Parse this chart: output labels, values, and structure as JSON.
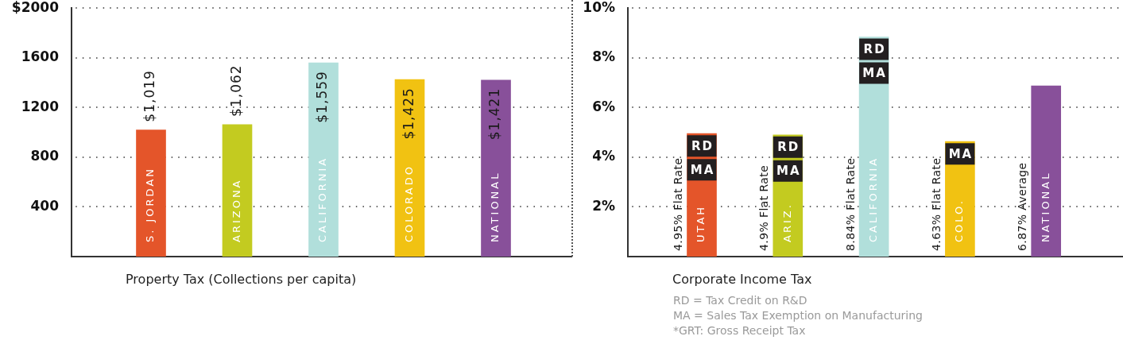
{
  "chart_data": [
    {
      "type": "bar",
      "xlabel": "Property Tax (Collections per capita)",
      "categories": [
        "S. JORDAN",
        "ARIZONA",
        "CALIFORNIA",
        "COLORADO",
        "NATIONAL"
      ],
      "values": [
        1019,
        1062,
        1559,
        1425,
        1421
      ],
      "colors": [
        "#e4552a",
        "#c3cb20",
        "#b1dfdb",
        "#f1c212",
        "#88509a"
      ],
      "value_labels": [
        "$1,019",
        "$1,062",
        "$1,559",
        "$1,425",
        "$1,421"
      ],
      "ylim": [
        0,
        2000
      ],
      "yticks": [
        400,
        800,
        1200,
        1600,
        {
          "value": 2000,
          "label": "$2000"
        }
      ],
      "grid": "y"
    },
    {
      "type": "bar",
      "xlabel": "Corporate Income Tax",
      "categories": [
        "UTAH",
        "ARIZ.",
        "CALIFORNIA",
        "COLO.",
        "NATIONAL"
      ],
      "values": [
        4.95,
        4.9,
        8.84,
        4.63,
        6.87
      ],
      "colors": [
        "#e4552a",
        "#c3cb20",
        "#b1dfdb",
        "#f1c212",
        "#88509a"
      ],
      "value_labels": [
        "4.95% Flat Rate",
        "4.9% Flat Rate",
        "8.84% Flat Rate",
        "4.63% Flat Rate",
        "6.87% Average"
      ],
      "ylim": [
        0,
        10
      ],
      "yticks": [
        {
          "value": 2,
          "label": "2%"
        },
        {
          "value": 4,
          "label": "4%"
        },
        {
          "value": 6,
          "label": "6%"
        },
        {
          "value": 8,
          "label": "8%"
        },
        {
          "value": 10,
          "label": "10%"
        }
      ],
      "grid": "y",
      "annotations": [
        {
          "text": "RD",
          "x": "UTAH",
          "y": 4.95
        },
        {
          "text": "MA",
          "x": "UTAH",
          "y": 4.95
        },
        {
          "text": "RD",
          "x": "ARIZ.",
          "y": 4.9
        },
        {
          "text": "MA",
          "x": "ARIZ.",
          "y": 4.9
        },
        {
          "text": "RD",
          "x": "CALIFORNIA",
          "y": 8.84
        },
        {
          "text": "MA",
          "x": "CALIFORNIA",
          "y": 8.84
        },
        {
          "text": "MA",
          "x": "COLO.",
          "y": 4.63
        },
        "RD = Tax Credit on R&D",
        "MA = Sales Tax Exemption on Manufacturing",
        "*GRT: Gross Receipt Tax"
      ]
    }
  ]
}
